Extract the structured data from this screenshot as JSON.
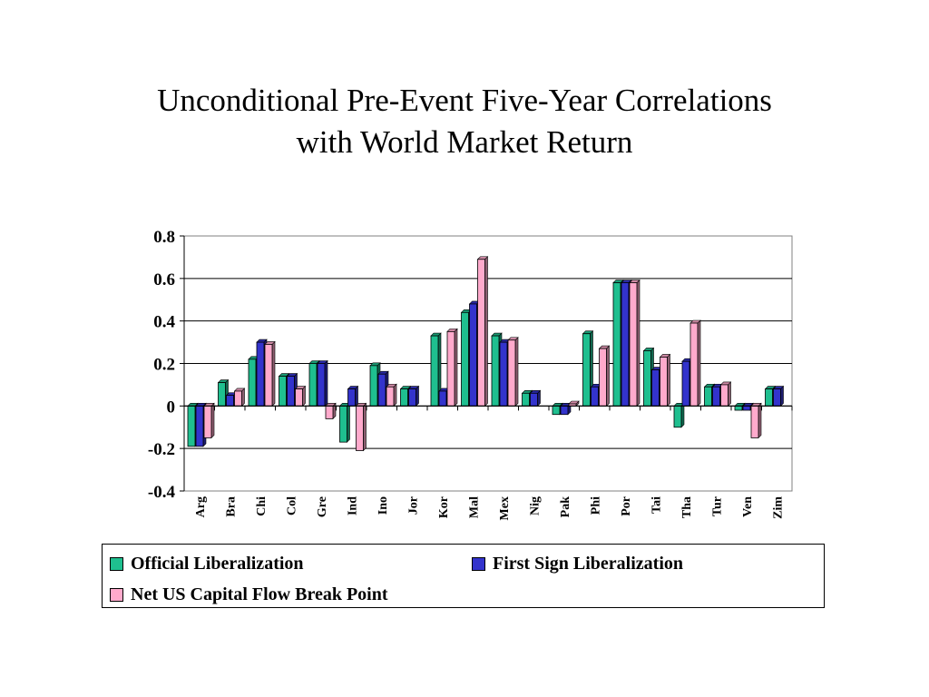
{
  "title": {
    "line1": "Unconditional Pre-Event Five-Year Correlations",
    "line2": "with World Market Return"
  },
  "colors": {
    "official": "#1fbf8f",
    "first_sign": "#3333cc",
    "net_us": "#ffaacc"
  },
  "chart_data": {
    "type": "bar",
    "title": "Unconditional Pre-Event Five-Year Correlations with World Market Return",
    "xlabel": "",
    "ylabel": "",
    "ylim": [
      -0.4,
      0.8
    ],
    "yticks": [
      0.8,
      0.6,
      0.4,
      0.2,
      0,
      -0.2,
      -0.4
    ],
    "ytick_labels": [
      "0.8",
      "0.6",
      "0.4",
      "0.2",
      "0",
      "-0.2",
      "-0.4"
    ],
    "grid": true,
    "legend_position": "bottom",
    "categories": [
      "Arg",
      "Bra",
      "Chi",
      "Col",
      "Gre",
      "Ind",
      "Ino",
      "Jor",
      "Kor",
      "Mal",
      "Mex",
      "Nig",
      "Pak",
      "Phi",
      "Por",
      "Tai",
      "Tha",
      "Tur",
      "Ven",
      "Zim"
    ],
    "series": [
      {
        "name": "Official Liberalization",
        "values": [
          -0.19,
          0.11,
          0.22,
          0.14,
          0.2,
          -0.17,
          0.19,
          0.08,
          0.33,
          0.44,
          0.33,
          0.06,
          -0.04,
          0.34,
          0.58,
          0.26,
          -0.1,
          0.09,
          -0.02,
          0.08
        ]
      },
      {
        "name": "First Sign Liberalization",
        "values": [
          -0.19,
          0.05,
          0.3,
          0.14,
          0.2,
          0.08,
          0.15,
          0.08,
          0.07,
          0.48,
          0.3,
          0.06,
          -0.04,
          0.09,
          0.58,
          0.17,
          0.21,
          0.09,
          -0.02,
          0.08
        ]
      },
      {
        "name": "Net US Capital Flow Break Point",
        "values": [
          -0.15,
          0.07,
          0.29,
          0.08,
          -0.06,
          -0.21,
          0.09,
          null,
          0.35,
          0.69,
          0.31,
          null,
          0.01,
          0.27,
          0.58,
          0.23,
          0.39,
          0.1,
          -0.15,
          null
        ]
      }
    ]
  }
}
